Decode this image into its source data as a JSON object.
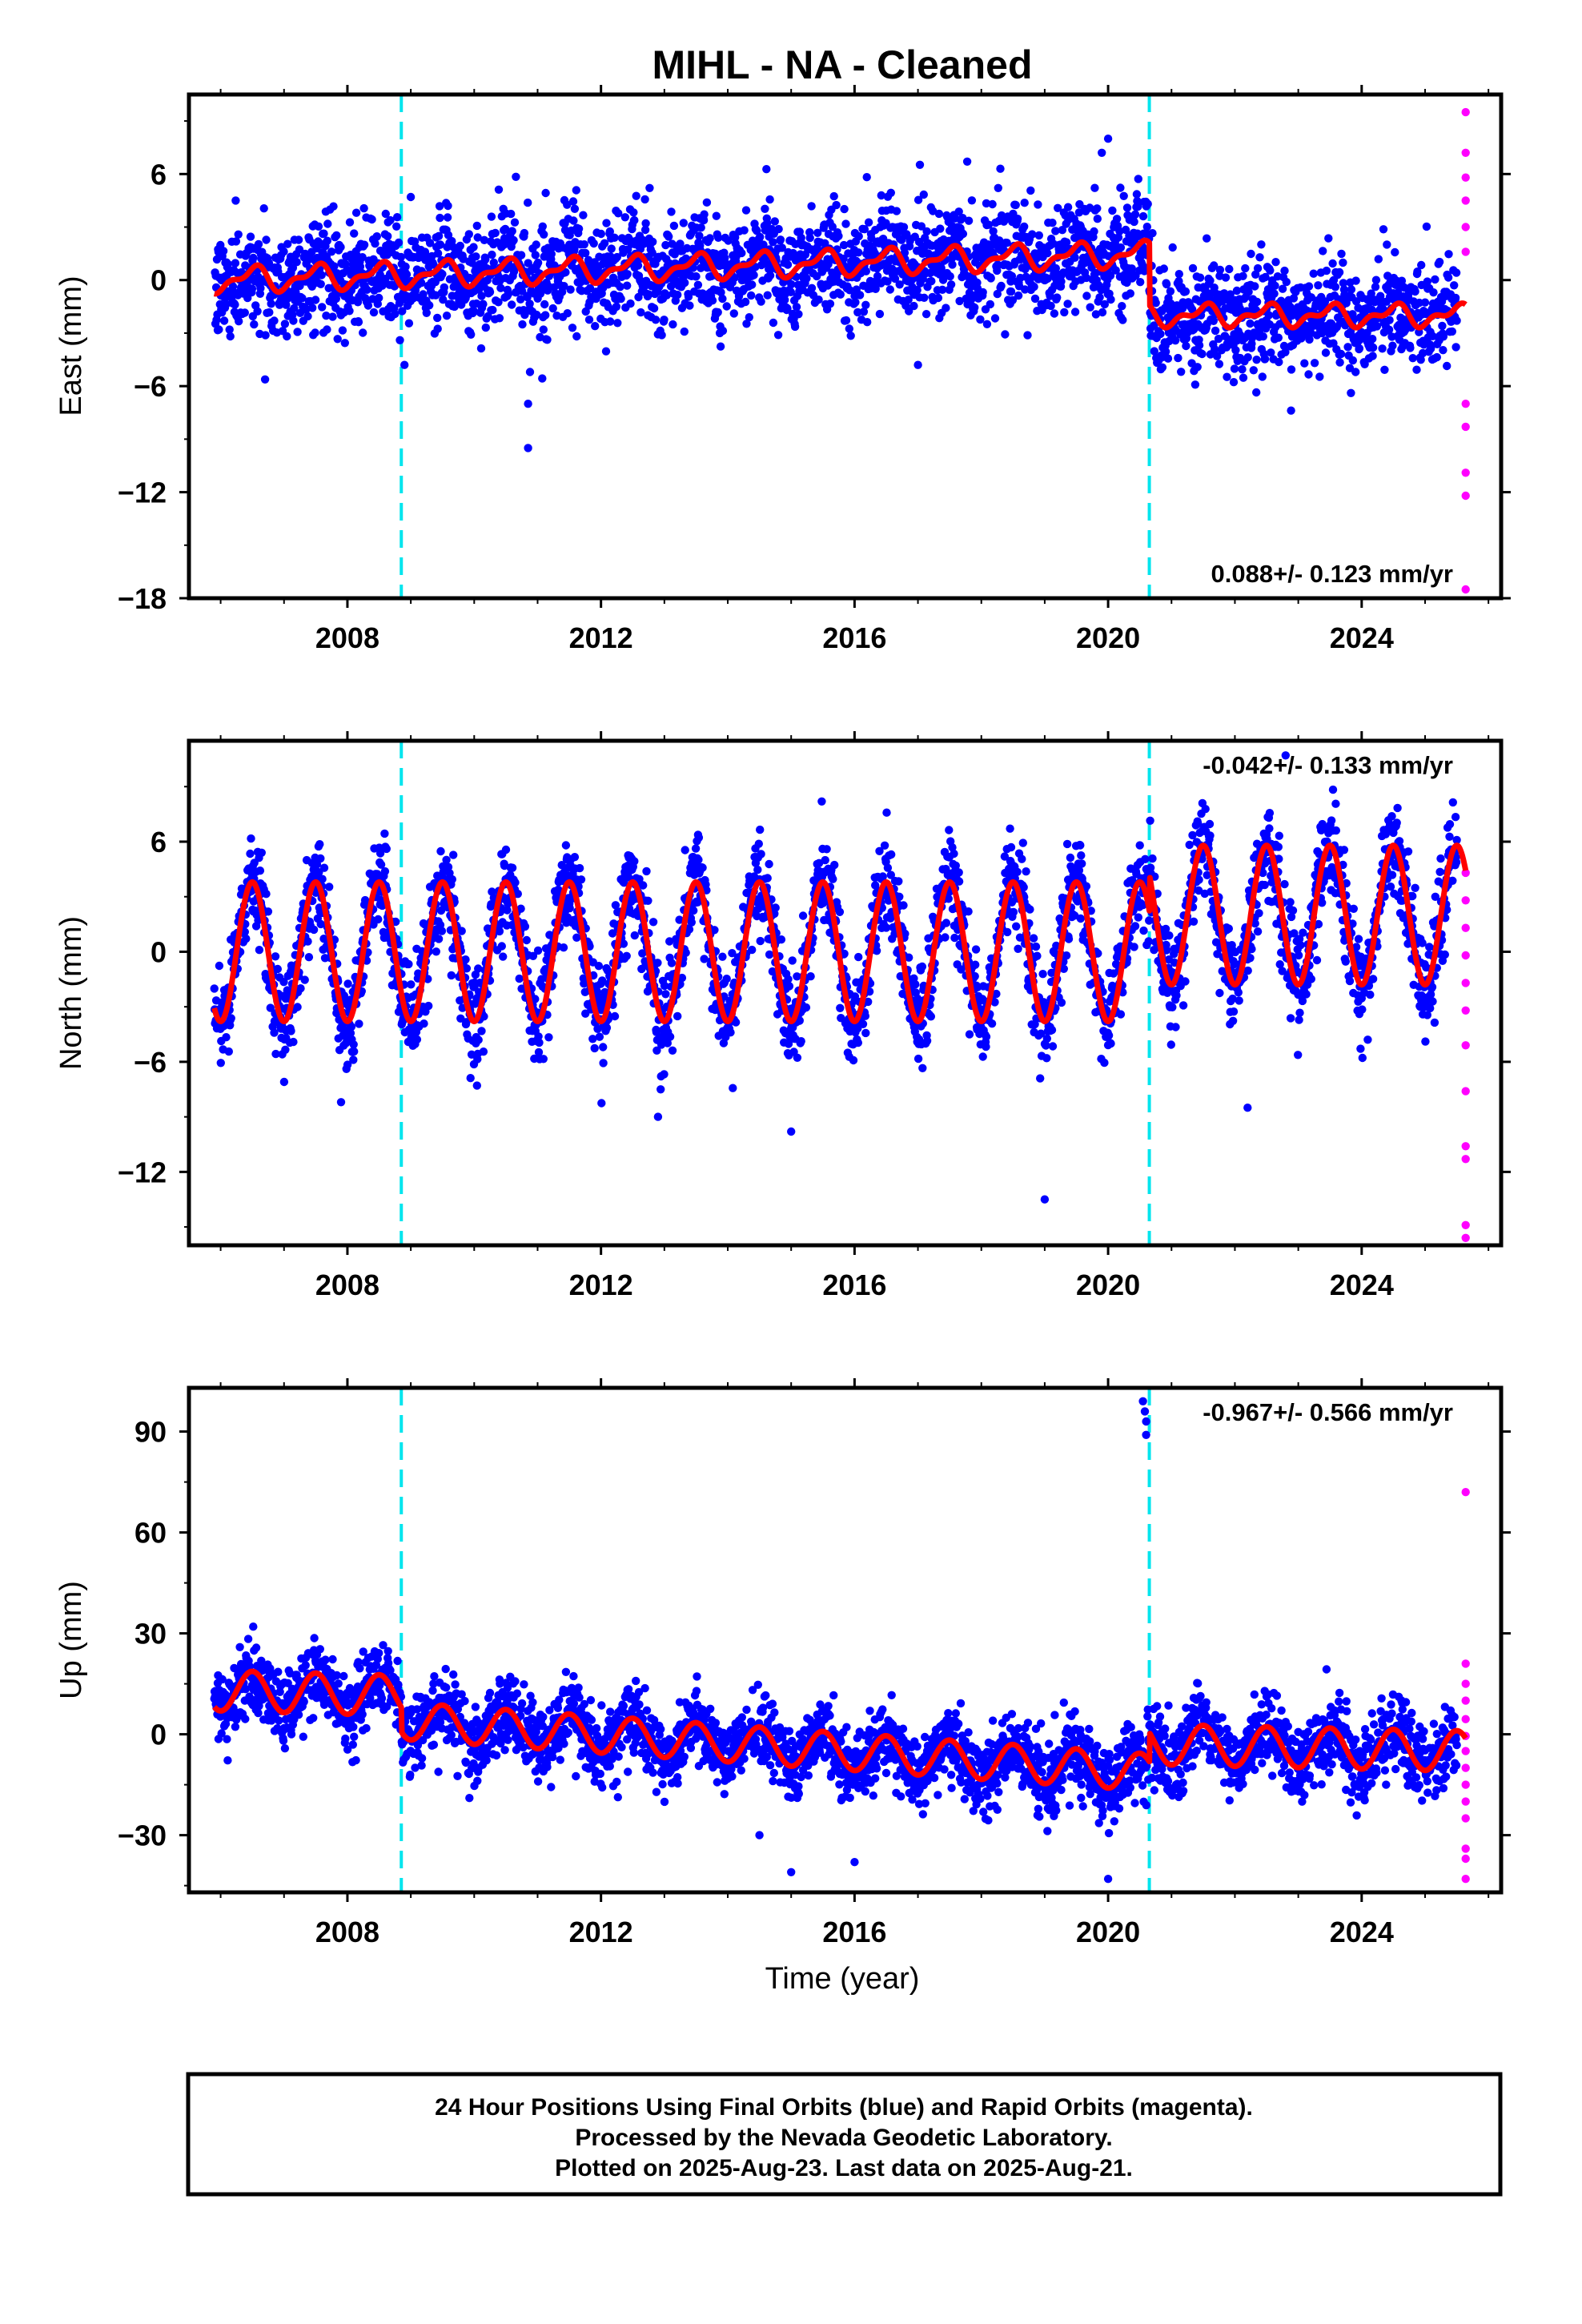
{
  "title": "MIHL  - NA - Cleaned",
  "x_axis_label": "Time (year)",
  "colors": {
    "final_orbits": "#0000ff",
    "rapid_orbits": "#ff00ff",
    "model_fit": "#ff0000",
    "equipment_change": "#00e5ee"
  },
  "caption": {
    "line1": "24 Hour Positions Using Final Orbits (blue) and Rapid Orbits (magenta).",
    "line2": "Processed by the Nevada Geodetic Laboratory.",
    "line3": "Plotted on 2025-Aug-23. Last data on 2025-Aug-21."
  },
  "chart_data": [
    {
      "type": "scatter",
      "component": "east",
      "ylabel": "East (mm)",
      "xlim": [
        2005.5,
        2026.2
      ],
      "ylim": [
        -18,
        10.5
      ],
      "yticks": [
        -18,
        -12,
        -6,
        0,
        6
      ],
      "xticks": [
        2008,
        2012,
        2016,
        2020,
        2024
      ],
      "rate_text": "0.088+/- 0.123 mm/yr",
      "rate_position": "bottom-right",
      "equipment_change_lines": [
        2008.85,
        2020.65
      ],
      "start": 2005.9,
      "end_final": 2025.5,
      "end_rapid": 2025.64,
      "noise": 1.5,
      "segments": [
        {
          "from": 2005.9,
          "to": 2020.65,
          "offset": 0.0,
          "trend": 0.1,
          "annual": 0.6,
          "semiannual": 0.3
        },
        {
          "from": 2020.65,
          "to": 2025.64,
          "offset": -2.0,
          "trend": 0.0,
          "annual": 0.5,
          "semiannual": 0.3
        }
      ],
      "outliers": [
        {
          "x": 2010.85,
          "y": -9.5
        },
        {
          "x": 2010.85,
          "y": -7.0
        },
        {
          "x": 2010.88,
          "y": -5.2
        },
        {
          "x": 2018.3,
          "y": 6.3
        },
        {
          "x": 2020.0,
          "y": 8.0
        },
        {
          "x": 2019.9,
          "y": 7.2
        },
        {
          "x": 2017.0,
          "y": -4.8
        },
        {
          "x": 2008.9,
          "y": -4.8
        },
        {
          "x": 2009.0,
          "y": 4.7
        }
      ],
      "rapid_points": [
        9.5,
        7.2,
        5.8,
        4.5,
        3.0,
        1.6,
        -7.0,
        -8.3,
        -10.9,
        -12.2,
        -17.5
      ]
    },
    {
      "type": "scatter",
      "component": "north",
      "ylabel": "North (mm)",
      "xlim": [
        2005.5,
        2026.2
      ],
      "ylim": [
        -16,
        11.5
      ],
      "yticks": [
        -12,
        -6,
        0,
        6
      ],
      "xticks": [
        2008,
        2012,
        2016,
        2020,
        2024
      ],
      "rate_text": "-0.042+/- 0.133 mm/yr",
      "rate_position": "top-right",
      "equipment_change_lines": [
        2008.85,
        2020.65
      ],
      "start": 2005.9,
      "end_final": 2025.5,
      "end_rapid": 2025.64,
      "noise": 1.3,
      "segments": [
        {
          "from": 2005.9,
          "to": 2020.65,
          "offset": 0.0,
          "trend": 0.0,
          "annual": 3.8,
          "semiannual": 0.0
        },
        {
          "from": 2020.65,
          "to": 2025.64,
          "offset": 2.0,
          "trend": 0.0,
          "annual": 3.8,
          "semiannual": 0.0
        }
      ],
      "outliers": [
        {
          "x": 2015.0,
          "y": -9.8
        },
        {
          "x": 2019.0,
          "y": -13.5
        },
        {
          "x": 2022.2,
          "y": -8.5
        },
        {
          "x": 2012.9,
          "y": -9.0
        },
        {
          "x": 2007.9,
          "y": -8.2
        },
        {
          "x": 2022.8,
          "y": 10.7
        }
      ],
      "rapid_points": [
        4.3,
        2.8,
        1.3,
        -0.2,
        -1.7,
        -3.2,
        -5.1,
        -7.6,
        -10.6,
        -11.3,
        -14.9,
        -15.6
      ]
    },
    {
      "type": "scatter",
      "component": "up",
      "ylabel": "Up (mm)",
      "xlim": [
        2005.5,
        2026.2
      ],
      "ylim": [
        -47,
        103
      ],
      "yticks": [
        -30,
        0,
        30,
        60,
        90
      ],
      "xticks": [
        2008,
        2012,
        2016,
        2020,
        2024
      ],
      "rate_text": "-0.967+/- 0.566 mm/yr",
      "rate_position": "top-right",
      "equipment_change_lines": [
        2008.85,
        2020.65
      ],
      "start": 2005.9,
      "end_final": 2025.5,
      "end_rapid": 2025.64,
      "noise": 5.5,
      "segments": [
        {
          "from": 2005.9,
          "to": 2008.85,
          "offset": 13.0,
          "trend": -0.5,
          "annual": 6.0,
          "semiannual": 0.0
        },
        {
          "from": 2008.85,
          "to": 2020.65,
          "offset": 4.0,
          "trend": -1.3,
          "annual": 5.5,
          "semiannual": 0.0
        },
        {
          "from": 2020.65,
          "to": 2025.64,
          "offset": -3.0,
          "trend": -0.4,
          "annual": 6.0,
          "semiannual": 0.0
        }
      ],
      "outliers": [
        {
          "x": 2020.55,
          "y": 99.0
        },
        {
          "x": 2020.58,
          "y": 96.0
        },
        {
          "x": 2020.6,
          "y": 93.0
        },
        {
          "x": 2020.6,
          "y": 89.0
        },
        {
          "x": 2015.0,
          "y": -41.0
        },
        {
          "x": 2020.0,
          "y": -43.0
        },
        {
          "x": 2016.0,
          "y": -38.0
        },
        {
          "x": 2014.5,
          "y": -30.0
        }
      ],
      "rapid_points": [
        72.0,
        21.0,
        15.0,
        10.0,
        4.5,
        -0.5,
        -5.0,
        -10.0,
        -15.0,
        -20.0,
        -25.0,
        -34.0,
        -37.0,
        -43.0
      ]
    }
  ]
}
